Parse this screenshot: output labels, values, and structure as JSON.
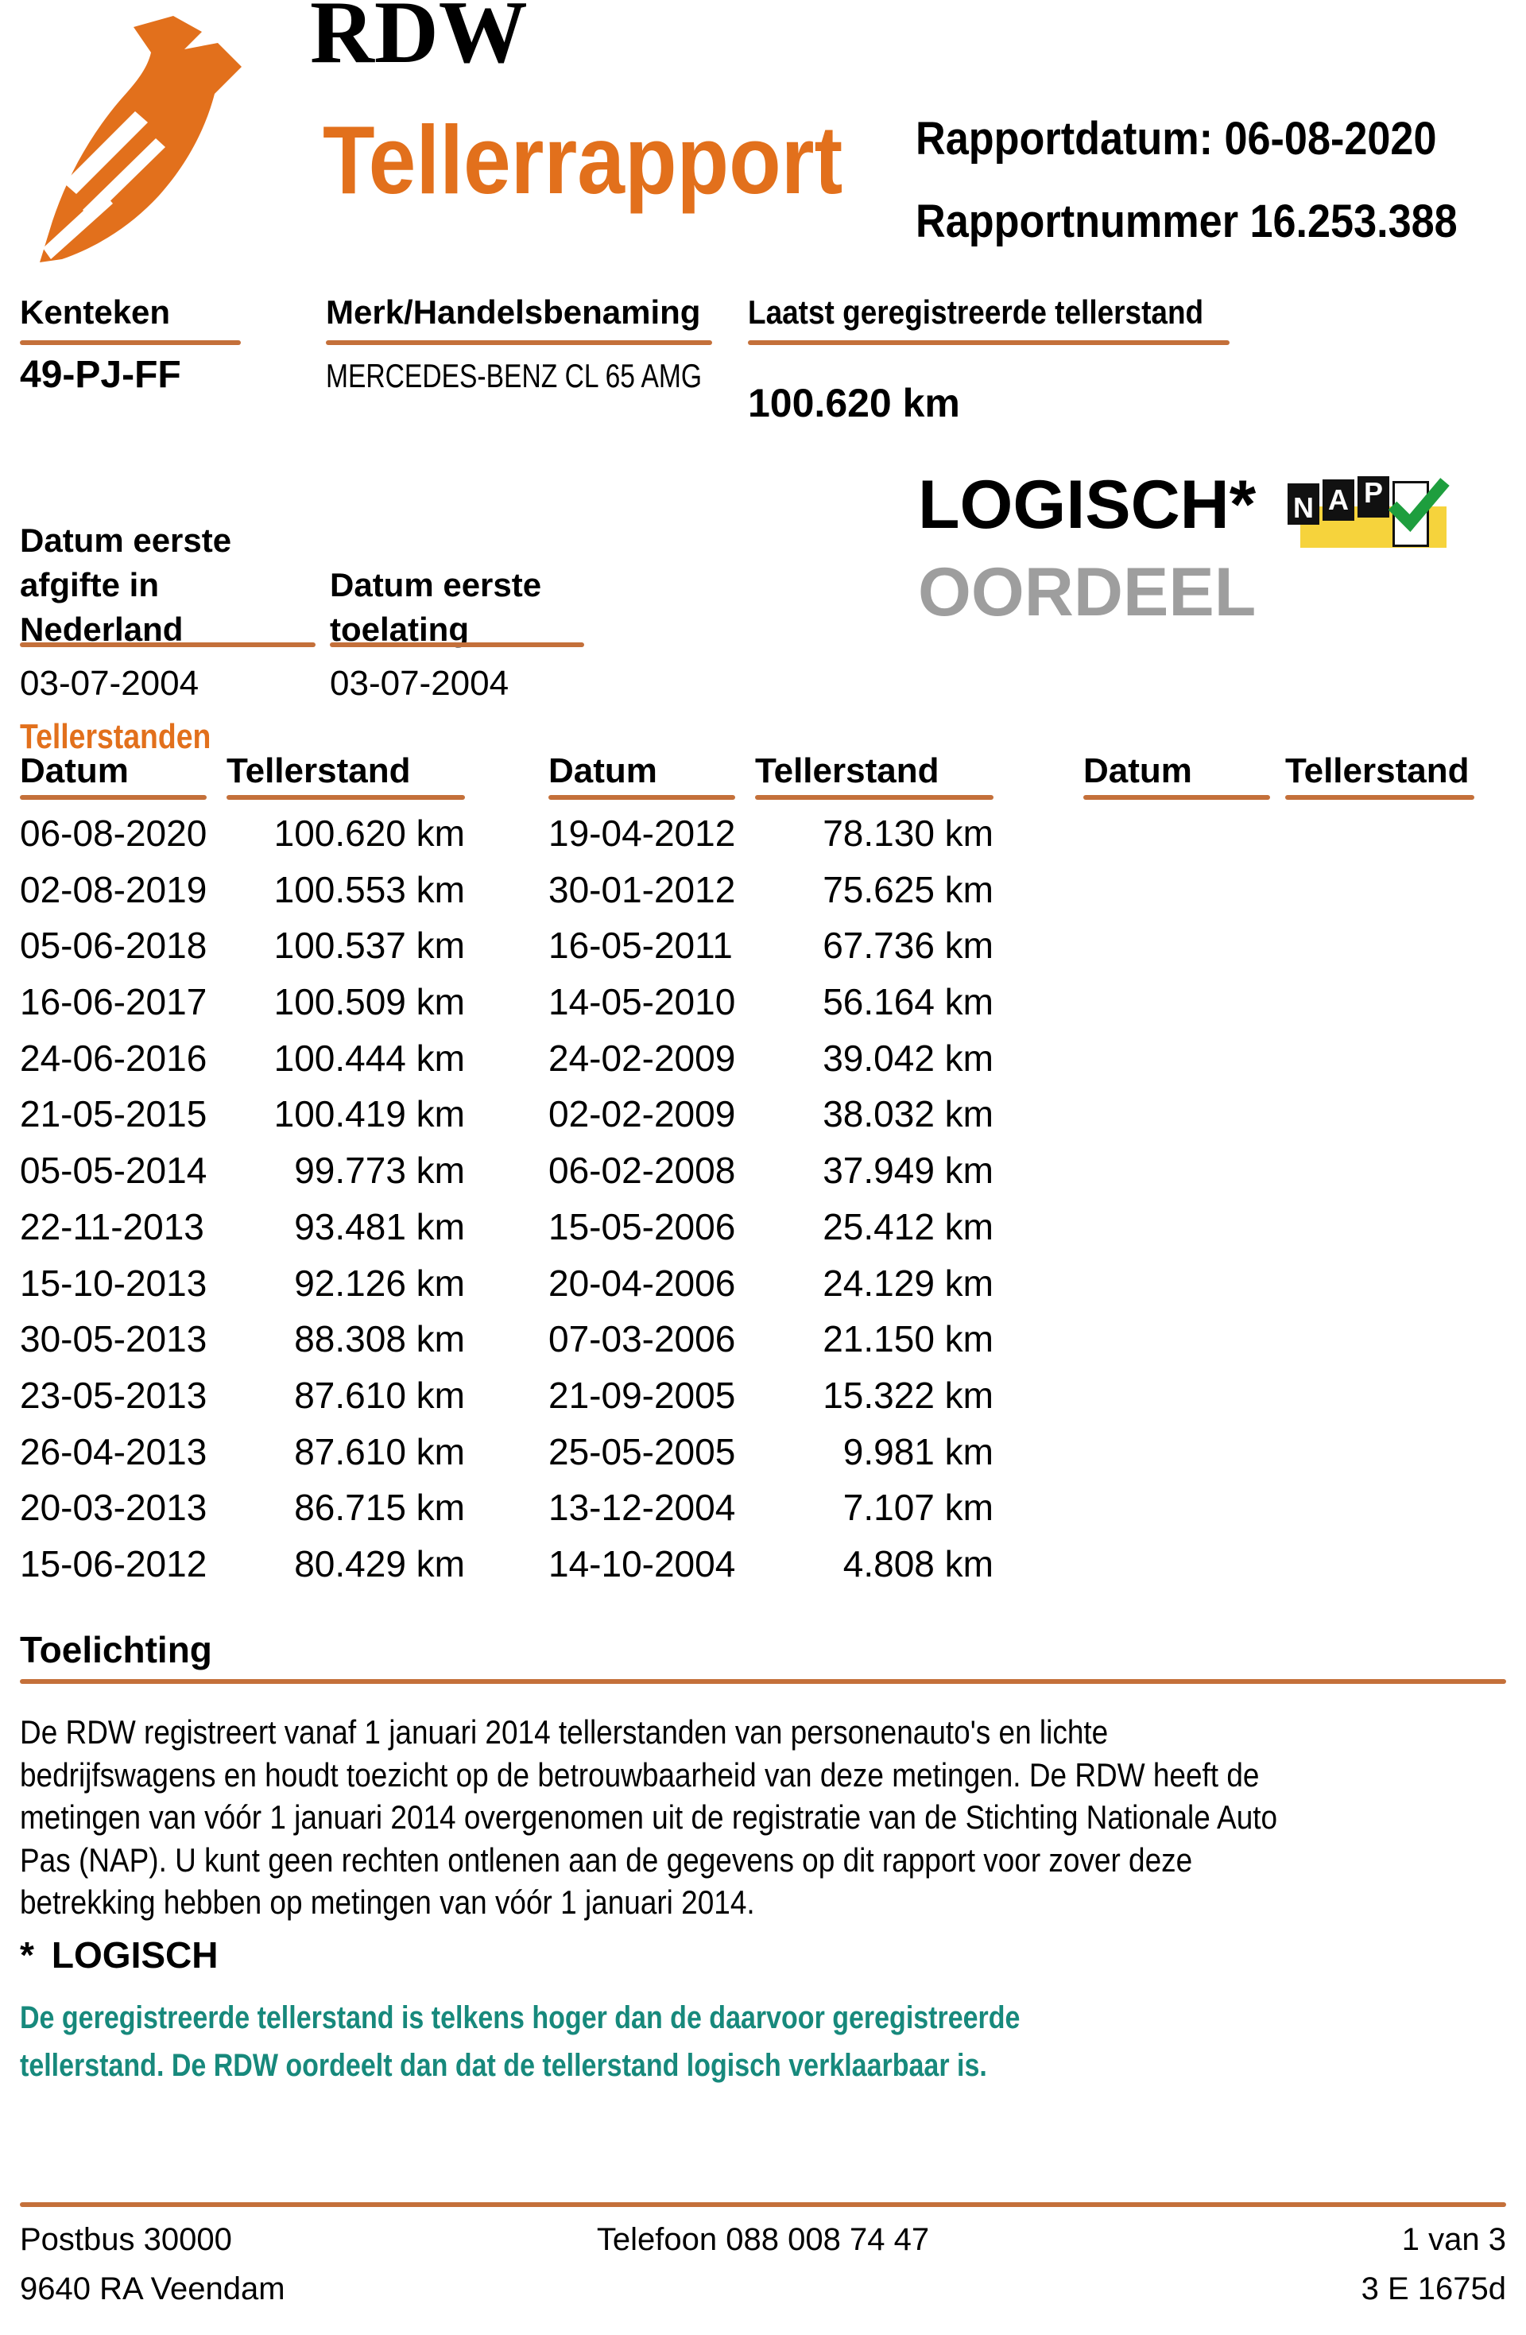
{
  "header": {
    "rdw_text": "RDW",
    "title": "Tellerrapport",
    "report_date_label": "Rapportdatum:",
    "report_date": "06-08-2020",
    "report_number_label": "Rapportnummer",
    "report_number": "16.253.388"
  },
  "vehicle": {
    "kenteken_label": "Kenteken",
    "kenteken": "49-PJ-FF",
    "merk_label": "Merk/Handelsbenaming",
    "merk": "MERCEDES-BENZ CL 65 AMG",
    "laatste_tellerstand_label": "Laatst geregistreerde tellerstand",
    "laatste_tellerstand": "100.620 km",
    "datum_afgifte_label_lines": [
      "Datum eerste",
      "afgifte in",
      "Nederland"
    ],
    "datum_afgifte": "03-07-2004",
    "datum_toelating_label_lines": [
      "Datum eerste",
      "toelating"
    ],
    "datum_toelating": "03-07-2004"
  },
  "oordeel": {
    "value": "LOGISCH*",
    "label": "OORDEEL",
    "nap": {
      "letters": [
        "N",
        "A",
        "P"
      ]
    }
  },
  "tellerstanden": {
    "title": "Tellerstanden",
    "headers": {
      "datum": "Datum",
      "tellerstand": "Tellerstand"
    },
    "groups": [
      {
        "rows": [
          {
            "datum": "06-08-2020",
            "tellerstand": "100.620 km"
          },
          {
            "datum": "02-08-2019",
            "tellerstand": "100.553 km"
          },
          {
            "datum": "05-06-2018",
            "tellerstand": "100.537 km"
          },
          {
            "datum": "16-06-2017",
            "tellerstand": "100.509 km"
          },
          {
            "datum": "24-06-2016",
            "tellerstand": "100.444 km"
          },
          {
            "datum": "21-05-2015",
            "tellerstand": "100.419 km"
          },
          {
            "datum": "05-05-2014",
            "tellerstand": "99.773 km"
          },
          {
            "datum": "22-11-2013",
            "tellerstand": "93.481 km"
          },
          {
            "datum": "15-10-2013",
            "tellerstand": "92.126 km"
          },
          {
            "datum": "30-05-2013",
            "tellerstand": "88.308 km"
          },
          {
            "datum": "23-05-2013",
            "tellerstand": "87.610 km"
          },
          {
            "datum": "26-04-2013",
            "tellerstand": "87.610 km"
          },
          {
            "datum": "20-03-2013",
            "tellerstand": "86.715 km"
          },
          {
            "datum": "15-06-2012",
            "tellerstand": "80.429 km"
          }
        ]
      },
      {
        "rows": [
          {
            "datum": "19-04-2012",
            "tellerstand": "78.130 km"
          },
          {
            "datum": "30-01-2012",
            "tellerstand": "75.625 km"
          },
          {
            "datum": "16-05-2011",
            "tellerstand": "67.736 km"
          },
          {
            "datum": "14-05-2010",
            "tellerstand": "56.164 km"
          },
          {
            "datum": "24-02-2009",
            "tellerstand": "39.042 km"
          },
          {
            "datum": "02-02-2009",
            "tellerstand": "38.032 km"
          },
          {
            "datum": "06-02-2008",
            "tellerstand": "37.949 km"
          },
          {
            "datum": "15-05-2006",
            "tellerstand": "25.412 km"
          },
          {
            "datum": "20-04-2006",
            "tellerstand": "24.129 km"
          },
          {
            "datum": "07-03-2006",
            "tellerstand": "21.150 km"
          },
          {
            "datum": "21-09-2005",
            "tellerstand": "15.322 km"
          },
          {
            "datum": "25-05-2005",
            "tellerstand": "9.981 km"
          },
          {
            "datum": "13-12-2004",
            "tellerstand": "7.107 km"
          },
          {
            "datum": "14-10-2004",
            "tellerstand": "4.808 km"
          }
        ]
      },
      {
        "rows": []
      }
    ]
  },
  "toelichting": {
    "title": "Toelichting",
    "lines": [
      "De RDW registreert vanaf 1 januari 2014 tellerstanden van personenauto's en lichte",
      "bedrijfswagens en houdt toezicht op de betrouwbaarheid van deze metingen. De RDW heeft de",
      "metingen van vóór 1 januari 2014 overgenomen uit de registratie van de Stichting Nationale Auto",
      "Pas (NAP). U kunt geen rechten ontlenen aan de gegevens op dit rapport voor zover deze",
      "betrekking hebben op metingen van vóór 1 januari 2014."
    ]
  },
  "logisch_note": {
    "marker": "*",
    "title": "LOGISCH",
    "lines": [
      "De geregistreerde tellerstand is telkens hoger dan de daarvoor geregistreerde",
      "tellerstand. De RDW oordeelt dan dat de tellerstand logisch verklaarbaar is."
    ]
  },
  "footer": {
    "address_line1": "Postbus 30000",
    "address_line2": "9640 RA Veendam",
    "phone": "Telefoon 088 008 74 47",
    "page": "1 van 3",
    "code": "3 E 1675d"
  },
  "colors": {
    "brand_orange": "#e2701c",
    "rule_orange": "#c4703a",
    "oordeel_gray": "#9e9e9e",
    "note_teal": "#17897c",
    "nap_yellow": "#f6d33c",
    "nap_green": "#1e9e3e",
    "nap_black": "#111111"
  }
}
